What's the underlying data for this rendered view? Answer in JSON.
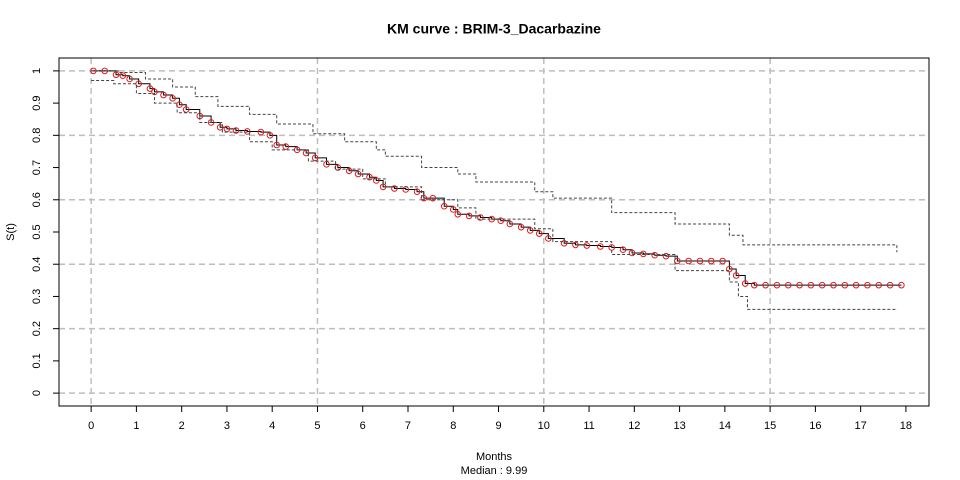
{
  "chart_data": {
    "type": "km",
    "title": "KM curve : BRIM-3_Dacarbazine",
    "xlabel": "Months",
    "ylabel": "S(t)",
    "subtitle": "Median : 9.99",
    "xlim": [
      -0.71,
      18.51
    ],
    "ylim": [
      -0.04,
      1.04
    ],
    "xticks": [
      0,
      1,
      2,
      3,
      4,
      5,
      6,
      7,
      8,
      9,
      10,
      11,
      12,
      13,
      14,
      15,
      16,
      17,
      18
    ],
    "yticks": [
      0,
      0.1,
      0.2,
      0.3,
      0.4,
      0.5,
      0.6,
      0.7,
      0.8,
      0.9,
      1
    ],
    "xgrid": [
      0,
      5,
      10,
      15
    ],
    "ygrid": [
      0,
      0.2,
      0.4,
      0.6,
      0.8,
      1
    ],
    "grid_color": "#bebebe",
    "series": [
      {
        "role": "estimate",
        "line_color": "#000000",
        "marker_color": "#e31a1c",
        "x": [
          0.05,
          0.3,
          0.55,
          0.7,
          0.85,
          1.05,
          1.3,
          1.4,
          1.6,
          1.8,
          1.95,
          2.1,
          2.4,
          2.65,
          2.85,
          3.0,
          3.2,
          3.45,
          3.75,
          3.95,
          4.1,
          4.3,
          4.55,
          4.75,
          4.95,
          5.2,
          5.45,
          5.7,
          5.9,
          6.15,
          6.3,
          6.45,
          6.7,
          6.95,
          7.2,
          7.35,
          7.55,
          7.8,
          8.0,
          8.1,
          8.35,
          8.6,
          8.85,
          9.05,
          9.25,
          9.5,
          9.7,
          9.9,
          10.1,
          10.45,
          10.7,
          10.95,
          11.25,
          11.5,
          11.75,
          11.95,
          12.2,
          12.45,
          12.7,
          12.95,
          13.2,
          13.45,
          13.7,
          13.95,
          14.1,
          14.25,
          14.45,
          14.65,
          14.9,
          15.15,
          15.4,
          15.65,
          15.9,
          16.15,
          16.4,
          16.65,
          16.9,
          17.15,
          17.4,
          17.65,
          17.9
        ],
        "values": [
          1.0,
          1.0,
          0.988,
          0.985,
          0.975,
          0.96,
          0.945,
          0.935,
          0.925,
          0.915,
          0.895,
          0.88,
          0.86,
          0.84,
          0.825,
          0.82,
          0.815,
          0.812,
          0.81,
          0.8,
          0.77,
          0.765,
          0.755,
          0.745,
          0.73,
          0.71,
          0.7,
          0.69,
          0.68,
          0.67,
          0.66,
          0.64,
          0.635,
          0.632,
          0.625,
          0.605,
          0.605,
          0.58,
          0.57,
          0.555,
          0.55,
          0.545,
          0.54,
          0.535,
          0.525,
          0.515,
          0.505,
          0.495,
          0.48,
          0.465,
          0.46,
          0.458,
          0.455,
          0.452,
          0.445,
          0.435,
          0.432,
          0.428,
          0.425,
          0.41,
          0.41,
          0.41,
          0.41,
          0.41,
          0.385,
          0.365,
          0.34,
          0.335,
          0.335,
          0.335,
          0.335,
          0.335,
          0.335,
          0.335,
          0.335,
          0.335,
          0.335,
          0.335,
          0.335,
          0.335,
          0.335
        ]
      },
      {
        "role": "upper",
        "line_color": "#444444",
        "x": [
          0,
          0.6,
          1.2,
          1.8,
          2.3,
          2.8,
          3.5,
          4.1,
          4.9,
          5.6,
          6.3,
          6.5,
          7.3,
          8.1,
          8.5,
          9.8,
          10.2,
          11.5,
          12.9,
          14.1,
          14.4,
          17.8
        ],
        "values": [
          1,
          0.995,
          0.975,
          0.95,
          0.92,
          0.89,
          0.865,
          0.835,
          0.805,
          0.78,
          0.755,
          0.735,
          0.7,
          0.68,
          0.655,
          0.625,
          0.605,
          0.56,
          0.525,
          0.49,
          0.46,
          0.437
        ]
      },
      {
        "role": "lower",
        "line_color": "#444444",
        "x": [
          0,
          0.5,
          1.0,
          1.4,
          1.9,
          2.4,
          2.9,
          3.5,
          4.0,
          4.8,
          5.4,
          6.0,
          6.5,
          7.3,
          8.1,
          8.5,
          9.8,
          10.2,
          11.5,
          12.9,
          14.1,
          14.3,
          14.5,
          17.8
        ],
        "values": [
          0.97,
          0.96,
          0.93,
          0.9,
          0.87,
          0.84,
          0.81,
          0.78,
          0.755,
          0.72,
          0.695,
          0.665,
          0.64,
          0.6,
          0.575,
          0.54,
          0.51,
          0.47,
          0.43,
          0.38,
          0.345,
          0.3,
          0.26,
          0.258
        ]
      }
    ]
  }
}
